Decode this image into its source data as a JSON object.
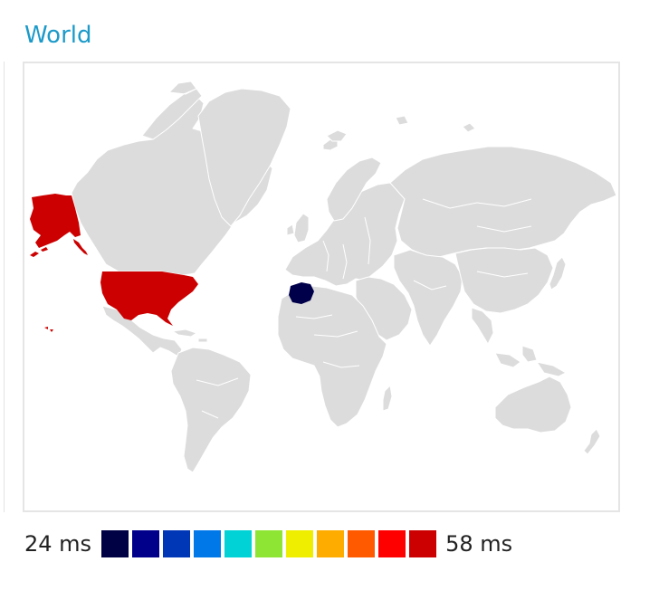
{
  "title": "World",
  "legend": {
    "min_label": "24 ms",
    "max_label": "58 ms",
    "scale_colors": [
      "#000045",
      "#00008b",
      "#0037b7",
      "#0078e8",
      "#00d2d5",
      "#8ee534",
      "#f0ee00",
      "#ffac00",
      "#ff5a00",
      "#ff0000",
      "#cc0000"
    ]
  },
  "map": {
    "base_land_color": "#dcdcdc",
    "highlighted_regions": [
      {
        "name": "United States",
        "color": "#cc0000"
      },
      {
        "name": "Spain",
        "color": "#00004a"
      }
    ]
  }
}
